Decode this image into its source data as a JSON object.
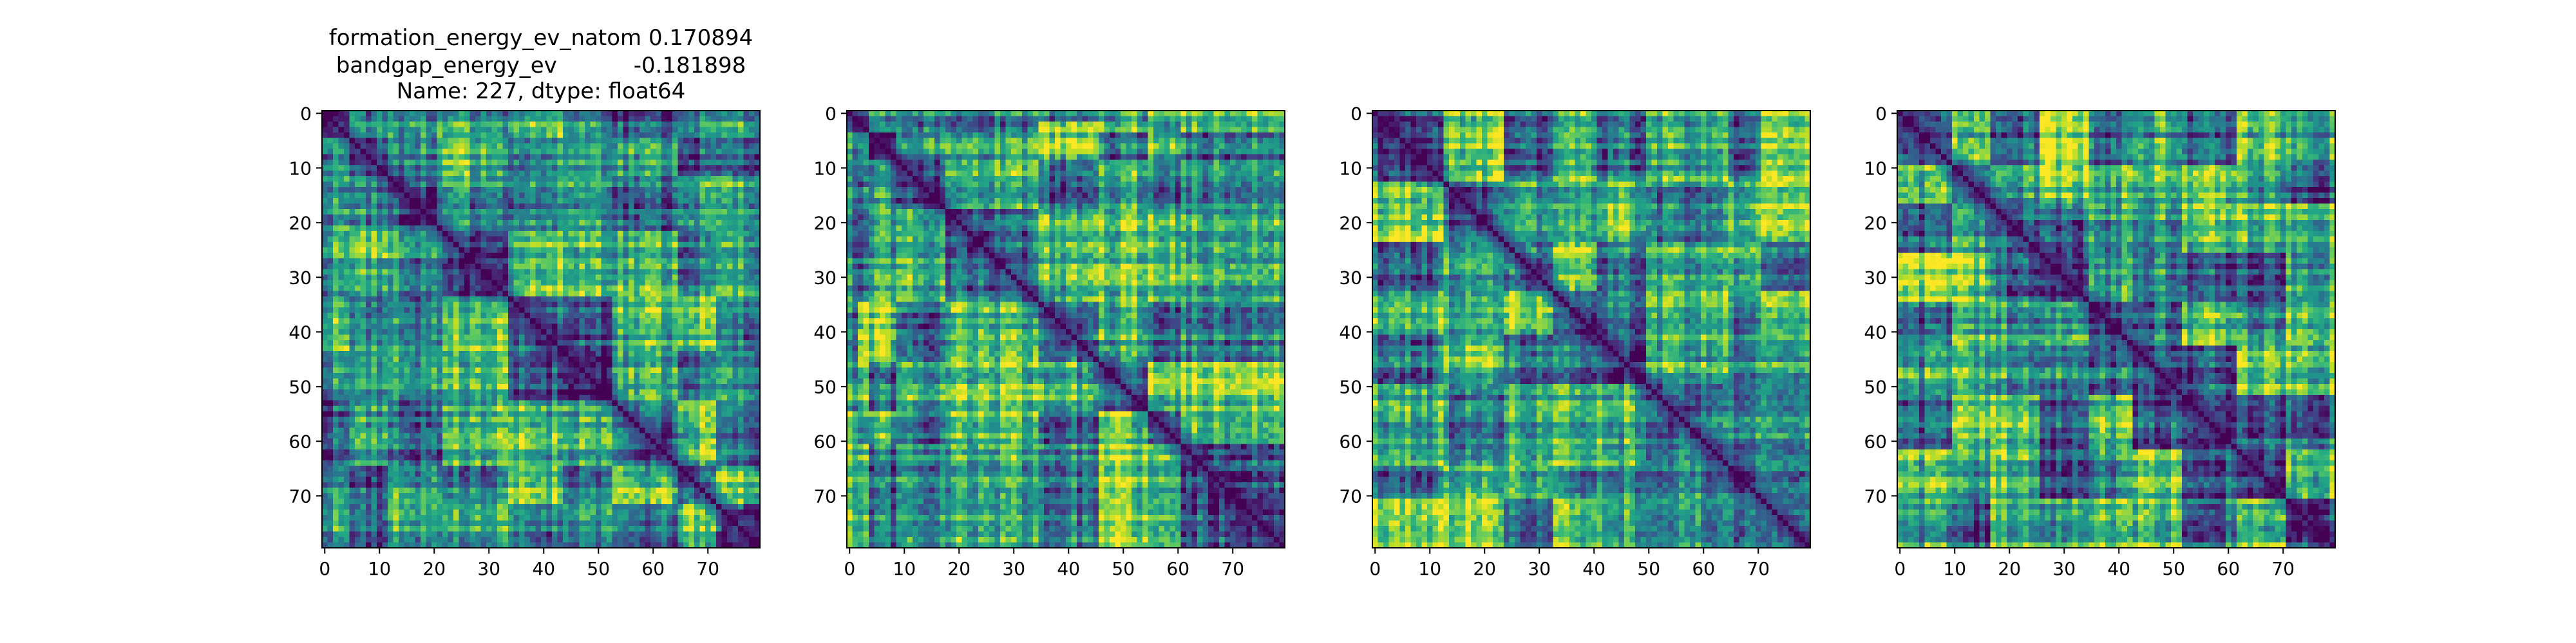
{
  "figure": {
    "title_lines": [
      "formation_energy_ev_natom    0.170894",
      "bandgap_energy_ev           -0.181898",
      "Name: 227, dtype: float64"
    ]
  },
  "chart_data": [
    {
      "type": "heatmap",
      "title": "formation_energy_ev_natom    0.170894\nbandgap_energy_ev           -0.181898\nName: 227, dtype: float64",
      "n": 80,
      "x_ticks": [
        0,
        10,
        20,
        30,
        40,
        50,
        60,
        70
      ],
      "y_ticks": [
        0,
        10,
        20,
        30,
        40,
        50,
        60,
        70
      ],
      "xlim": [
        0,
        79
      ],
      "ylim": [
        79,
        0
      ],
      "colormap": "viridis",
      "diagonal_value": 0,
      "block_boundaries": [
        5,
        12,
        22,
        34,
        44,
        53,
        65,
        72
      ],
      "seed": 11
    },
    {
      "type": "heatmap",
      "title": "",
      "n": 80,
      "x_ticks": [
        0,
        10,
        20,
        30,
        40,
        50,
        60,
        70
      ],
      "y_ticks": [
        0,
        10,
        20,
        30,
        40,
        50,
        60,
        70
      ],
      "xlim": [
        0,
        79
      ],
      "ylim": [
        79,
        0
      ],
      "colormap": "viridis",
      "diagonal_value": 0,
      "block_boundaries": [
        2,
        4,
        9,
        18,
        35,
        46,
        55,
        61
      ],
      "seed": 23
    },
    {
      "type": "heatmap",
      "title": "",
      "n": 80,
      "x_ticks": [
        0,
        10,
        20,
        30,
        40,
        50,
        60,
        70
      ],
      "y_ticks": [
        0,
        10,
        20,
        30,
        40,
        50,
        60,
        70
      ],
      "xlim": [
        0,
        79
      ],
      "ylim": [
        79,
        0
      ],
      "colormap": "viridis",
      "diagonal_value": 0,
      "block_boundaries": [
        13,
        24,
        33,
        41,
        50,
        65,
        71
      ],
      "seed": 37
    },
    {
      "type": "heatmap",
      "title": "",
      "n": 80,
      "x_ticks": [
        0,
        10,
        20,
        30,
        40,
        50,
        60,
        70
      ],
      "y_ticks": [
        0,
        10,
        20,
        30,
        40,
        50,
        60,
        70
      ],
      "xlim": [
        0,
        79
      ],
      "ylim": [
        79,
        0
      ],
      "colormap": "viridis",
      "diagonal_value": 0,
      "block_boundaries": [
        10,
        17,
        26,
        35,
        43,
        52,
        62,
        71
      ],
      "seed": 53
    }
  ],
  "colors": {
    "axis": "#000000",
    "background": "#ffffff"
  }
}
